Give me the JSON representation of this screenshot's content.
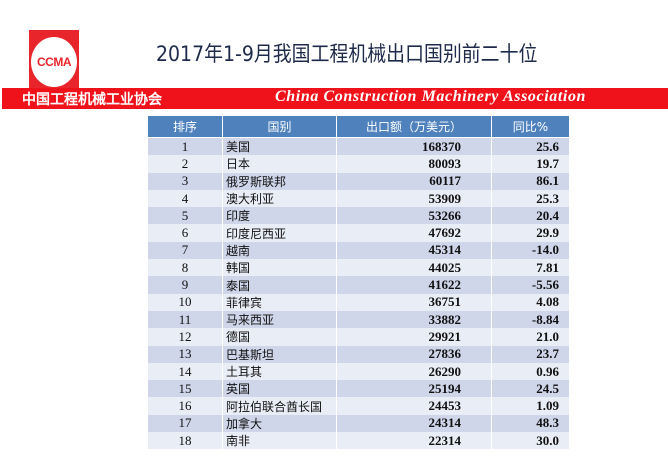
{
  "logo": {
    "text": "CCMA",
    "color": "#e8252b"
  },
  "title": "2017年1-9月我国工程机械出口国别前二十位",
  "banner": {
    "cn": "中国工程机械工业协会",
    "en": "China Construction Machinery Association",
    "color": "#f0121a"
  },
  "table": {
    "headers": [
      "排序",
      "国别",
      "出口额（万美元）",
      "同比%"
    ],
    "rows": [
      [
        "1",
        "美国",
        "168370",
        "25.6"
      ],
      [
        "2",
        "日本",
        "80093",
        "19.7"
      ],
      [
        "3",
        "俄罗斯联邦",
        "60117",
        "86.1"
      ],
      [
        "4",
        "澳大利亚",
        "53909",
        "25.3"
      ],
      [
        "5",
        "印度",
        "53266",
        "20.4"
      ],
      [
        "6",
        "印度尼西亚",
        "47692",
        "29.9"
      ],
      [
        "7",
        "越南",
        "45314",
        "-14.0"
      ],
      [
        "8",
        "韩国",
        "44025",
        "7.81"
      ],
      [
        "9",
        "泰国",
        "41622",
        "-5.56"
      ],
      [
        "10",
        "菲律宾",
        "36751",
        "4.08"
      ],
      [
        "11",
        "马来西亚",
        "33882",
        "-8.84"
      ],
      [
        "12",
        "德国",
        "29921",
        "21.0"
      ],
      [
        "13",
        "巴基斯坦",
        "27836",
        "23.7"
      ],
      [
        "14",
        "土耳其",
        "26290",
        "0.96"
      ],
      [
        "15",
        "英国",
        "25194",
        "24.5"
      ],
      [
        "16",
        "阿拉伯联合酋长国",
        "24453",
        "1.09"
      ],
      [
        "17",
        "加拿大",
        "24314",
        "48.3"
      ],
      [
        "18",
        "南非",
        "22314",
        "30.0"
      ]
    ]
  }
}
